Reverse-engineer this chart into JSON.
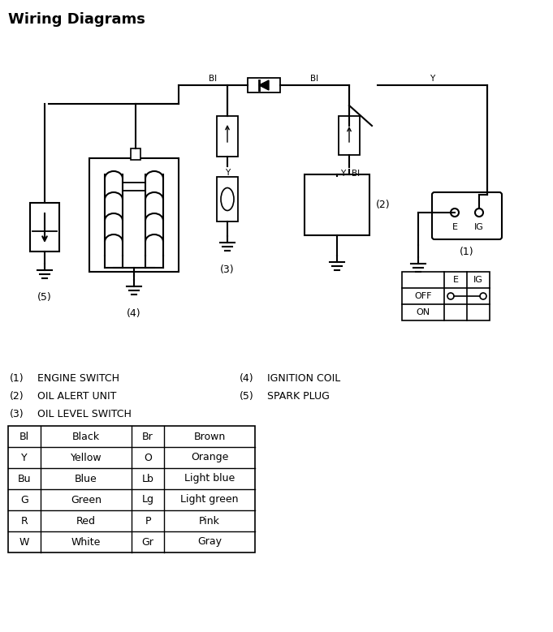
{
  "title": "Wiring Diagrams",
  "title_fontsize": 13,
  "bg_color": "#ffffff",
  "line_color": "#000000",
  "legend_items": [
    [
      "(1)",
      "ENGINE SWITCH"
    ],
    [
      "(2)",
      "OIL ALERT UNIT"
    ],
    [
      "(3)",
      "OIL LEVEL SWITCH"
    ],
    [
      "(4)",
      "IGNITION COIL"
    ],
    [
      "(5)",
      "SPARK PLUG"
    ]
  ],
  "color_table": [
    [
      "Bl",
      "Black",
      "Br",
      "Brown"
    ],
    [
      "Y",
      "Yellow",
      "O",
      "Orange"
    ],
    [
      "Bu",
      "Blue",
      "Lb",
      "Light blue"
    ],
    [
      "G",
      "Green",
      "Lg",
      "Light green"
    ],
    [
      "R",
      "Red",
      "P",
      "Pink"
    ],
    [
      "W",
      "White",
      "Gr",
      "Gray"
    ]
  ]
}
